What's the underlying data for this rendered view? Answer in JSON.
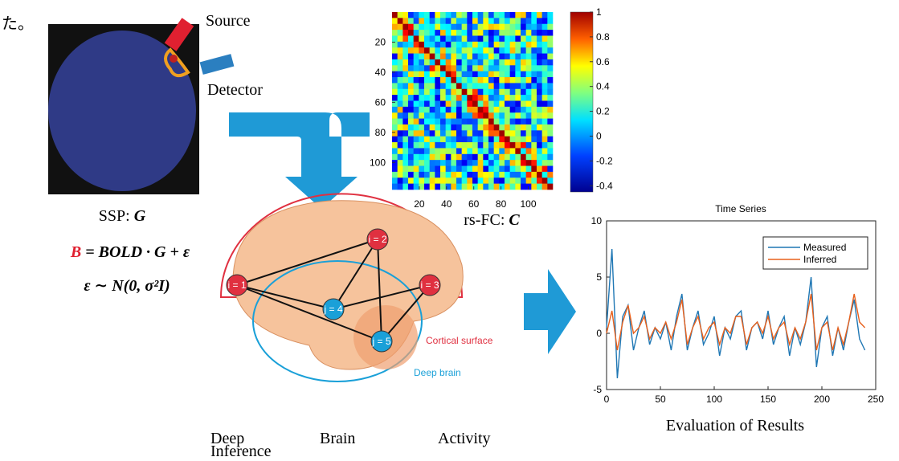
{
  "corner_text": "た。",
  "ssp": {
    "source_label": "Source",
    "detector_label": "Detector",
    "caption_prefix": "SSP: ",
    "caption_symbol": "G"
  },
  "equations": {
    "line1_lhs": "B",
    "line1_rhs": " = BOLD · G + ε",
    "line2": "ε ∼ N(0, σ²I)"
  },
  "brain": {
    "nodes": [
      "i = 1",
      "i = 2",
      "i = 3",
      "j = 4",
      "j = 5"
    ],
    "cortical_label": "Cortical surface",
    "deep_label": "Deep brain"
  },
  "method_caption": [
    "Deep",
    "Brain",
    "Activity",
    "Inference"
  ],
  "rsfc": {
    "type": "heatmap",
    "caption_prefix": "rs-FC: ",
    "caption_symbol": "C",
    "xlim": [
      0,
      118
    ],
    "ylim": [
      0,
      118
    ],
    "xticks": [
      20,
      40,
      60,
      80,
      100
    ],
    "yticks": [
      20,
      40,
      60,
      80,
      100
    ],
    "colorbar_lim": [
      -0.45,
      1
    ],
    "colorbar_ticks": [
      1,
      0.8,
      0.6,
      0.4,
      0.2,
      0,
      -0.2,
      -0.4
    ]
  },
  "chart_data": {
    "type": "line",
    "title": "Time Series",
    "xlabel": "Evaluation of Results",
    "x": [
      0,
      5,
      10,
      15,
      20,
      25,
      30,
      35,
      40,
      45,
      50,
      55,
      60,
      65,
      70,
      75,
      80,
      85,
      90,
      95,
      100,
      105,
      110,
      115,
      120,
      125,
      130,
      135,
      140,
      145,
      150,
      155,
      160,
      165,
      170,
      175,
      180,
      185,
      190,
      195,
      200,
      205,
      210,
      215,
      220,
      225,
      230,
      235,
      240
    ],
    "series": [
      {
        "name": "Measured",
        "color": "#1f77b4",
        "values": [
          0.5,
          7.5,
          -4.0,
          1.5,
          2.5,
          -1.5,
          0.5,
          2.0,
          -1.0,
          0.5,
          -0.5,
          1.0,
          -1.5,
          1.5,
          3.5,
          -1.5,
          0.5,
          2.0,
          -1.0,
          0.0,
          1.5,
          -2.0,
          0.5,
          -0.5,
          1.5,
          2.0,
          -1.5,
          0.5,
          1.0,
          -0.5,
          2.0,
          -1.0,
          0.5,
          1.5,
          -2.0,
          0.5,
          -1.0,
          1.0,
          5.0,
          -3.0,
          0.5,
          1.5,
          -2.0,
          0.5,
          -1.5,
          1.0,
          3.0,
          -0.5,
          -1.5
        ]
      },
      {
        "name": "Inferred",
        "color": "#e8601c",
        "values": [
          0.0,
          2.0,
          -1.5,
          1.0,
          2.5,
          0.0,
          0.5,
          1.5,
          -0.5,
          0.5,
          0.0,
          1.0,
          -0.5,
          1.0,
          3.0,
          -1.0,
          0.5,
          1.5,
          -0.5,
          0.5,
          1.0,
          -1.0,
          0.5,
          0.0,
          1.5,
          1.5,
          -1.0,
          0.5,
          1.0,
          0.0,
          1.5,
          -0.5,
          0.5,
          1.0,
          -1.0,
          0.5,
          -0.5,
          1.0,
          3.5,
          -1.5,
          0.5,
          1.0,
          -1.5,
          0.5,
          -1.0,
          1.0,
          3.5,
          1.0,
          0.5
        ]
      }
    ],
    "xlim": [
      0,
      250
    ],
    "ylim": [
      -5,
      10
    ],
    "xticks": [
      0,
      50,
      100,
      150,
      200,
      250
    ],
    "yticks": [
      -5,
      0,
      5,
      10
    ],
    "legend": "upper right"
  }
}
